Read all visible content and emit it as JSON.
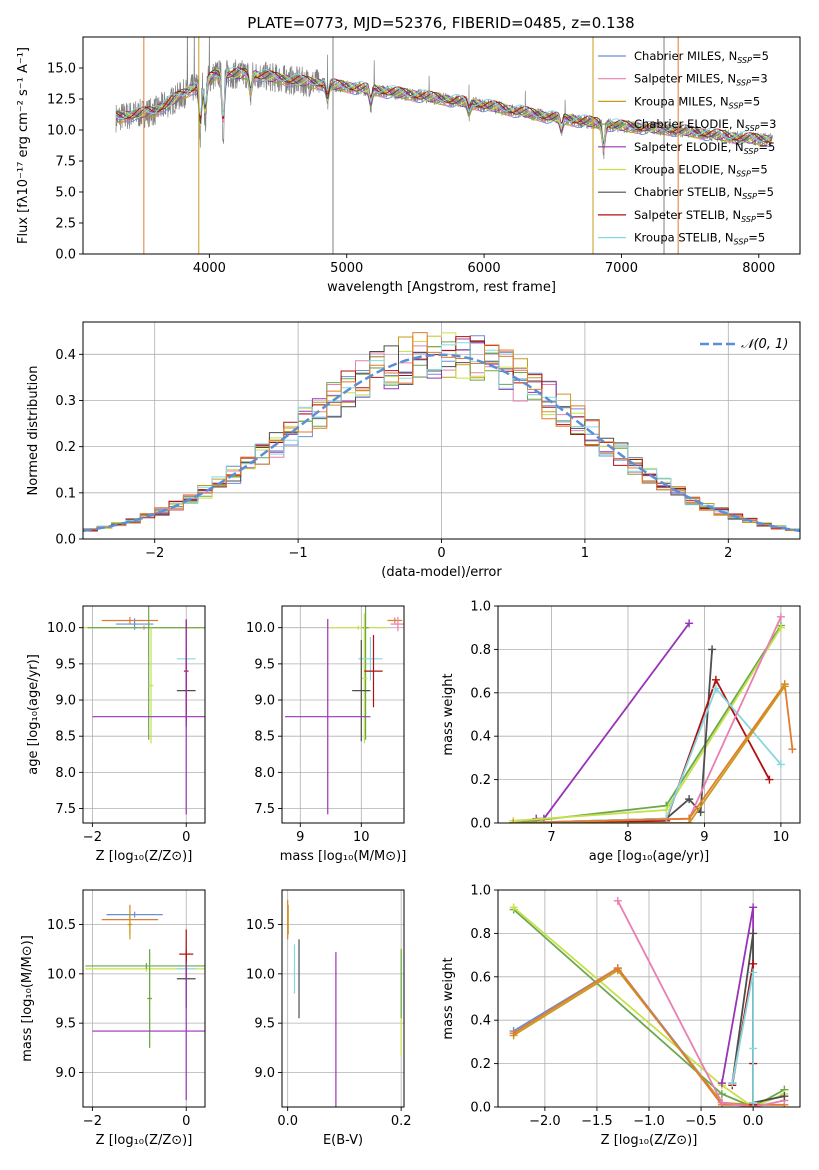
{
  "title": "PLATE=0773, MJD=52376, FIBERID=0485, z=0.138",
  "colors": {
    "Chabrier MILES": "#6a8fd8",
    "Salpeter MILES": "#e87fb0",
    "Kroupa MILES": "#c89b1a",
    "Chabrier ELODIE": "#6aa84f",
    "Salpeter ELODIE": "#9a32b8",
    "Kroupa ELODIE": "#c8e04a",
    "Chabrier STELIB": "#4d4d4d",
    "Salpeter STELIB": "#b01010",
    "Kroupa STELIB": "#86d8e0",
    "orange": "#e07b30",
    "data": "#808080"
  },
  "chart_data": [
    {
      "id": "spectrum",
      "type": "line",
      "xlabel": "wavelength [Angstrom, rest frame]",
      "ylabel": "Flux [fλ10⁻¹⁷ erg cm⁻² s⁻¹ A⁻¹]",
      "xlim": [
        3080,
        8300
      ],
      "ylim": [
        0,
        17.5
      ],
      "xticks": [
        4000,
        5000,
        6000,
        7000,
        8000
      ],
      "yticks": [
        0.0,
        2.5,
        5.0,
        7.5,
        10.0,
        12.5,
        15.0
      ],
      "legend_loc": "upper right",
      "legend": [
        "Chabrier MILES, N_SSP=5",
        "Salpeter MILES, N_SSP=3",
        "Kroupa MILES, N_SSP=5",
        "Chabrier ELODIE, N_SSP=3",
        "Salpeter ELODIE, N_SSP=5",
        "Kroupa ELODIE, N_SSP=5",
        "Chabrier STELIB, N_SSP=5",
        "Salpeter STELIB, N_SSP=5",
        "Kroupa STELIB, N_SSP=5"
      ],
      "legend_series": [
        "Chabrier MILES",
        "Salpeter MILES",
        "Kroupa MILES",
        "Chabrier ELODIE",
        "Salpeter ELODIE",
        "Kroupa ELODIE",
        "Chabrier STELIB",
        "Salpeter STELIB",
        "Kroupa STELIB"
      ],
      "continuum": [
        [
          3320,
          11.0
        ],
        [
          3600,
          11.5
        ],
        [
          3900,
          13.5
        ],
        [
          4050,
          14.5
        ],
        [
          4300,
          14.5
        ],
        [
          4600,
          14.0
        ],
        [
          5000,
          13.5
        ],
        [
          5500,
          12.8
        ],
        [
          6000,
          12.0
        ],
        [
          6500,
          11.0
        ],
        [
          7000,
          10.3
        ],
        [
          7400,
          10.0
        ],
        [
          7900,
          9.3
        ],
        [
          8100,
          9.2
        ]
      ],
      "dips": [
        [
          3934,
          4.5
        ],
        [
          3970,
          3.5
        ],
        [
          4100,
          5.2
        ],
        [
          4300,
          2.0
        ],
        [
          4861,
          1.5
        ],
        [
          5175,
          1.5
        ],
        [
          5890,
          1.0
        ],
        [
          6563,
          1.2
        ],
        [
          6870,
          2.5
        ]
      ],
      "spikes": [
        [
          3840,
          6
        ],
        [
          3890,
          5
        ],
        [
          4000,
          4
        ],
        [
          4860,
          4
        ],
        [
          5200,
          2.5
        ],
        [
          5600,
          2
        ],
        [
          5890,
          2
        ],
        [
          6300,
          2
        ],
        [
          6590,
          2
        ]
      ],
      "vlines": [
        [
          4900,
          "#808080"
        ],
        [
          7310,
          "#808080"
        ],
        [
          3523,
          "#e07b30"
        ],
        [
          3923,
          "#c89b1a"
        ],
        [
          6793,
          "#c89b1a"
        ],
        [
          7413,
          "#e07b30"
        ]
      ]
    },
    {
      "id": "residuals",
      "type": "histogram",
      "xlabel": "(data-model)/error",
      "ylabel": "Normed distribution",
      "xlim": [
        -2.5,
        2.5
      ],
      "ylim": [
        0,
        0.47
      ],
      "xticks": [
        -2,
        -1,
        0,
        1,
        2
      ],
      "yticks": [
        0.0,
        0.1,
        0.2,
        0.3,
        0.4
      ],
      "reference_label": "𝒩(0, 1)",
      "reference": {
        "mean": 0,
        "sigma": 1
      },
      "bin_width": 0.1
    },
    {
      "id": "age-vs-Z",
      "type": "errorbar",
      "xlabel": "Z [log₁₀(Z/Z⊙)]",
      "ylabel": "age  [log₁₀(age/yr)]",
      "xlim": [
        -2.2,
        0.4
      ],
      "ylim": [
        7.3,
        10.3
      ],
      "xticks": [
        -2,
        0
      ],
      "yticks": [
        7.5,
        8.0,
        8.5,
        9.0,
        9.5,
        10.0
      ],
      "points": [
        {
          "x": -1.2,
          "xe": 0.6,
          "y": 10.1,
          "ye": 0.05,
          "c": "#e07b30"
        },
        {
          "x": -1.1,
          "xe": 0.4,
          "y": 10.05,
          "ye": 0.08,
          "c": "#6a8fd8"
        },
        {
          "x": -0.9,
          "xe": 1.2,
          "y": 10.0,
          "ye": 0.03,
          "c": "#e87fb0"
        },
        {
          "x": -0.8,
          "xe": 1.4,
          "y": 10.0,
          "ye": 0.03,
          "c": "#c8e04a"
        },
        {
          "x": -0.8,
          "xe": 1.3,
          "y": 10.0,
          "ye": 1.55,
          "c": "#6aa84f"
        },
        {
          "x": -0.75,
          "xe": 0.05,
          "y": 9.2,
          "ye": 0.8,
          "c": "#c8e04a"
        },
        {
          "x": 0.0,
          "xe": 0.2,
          "y": 9.57,
          "ye": 0.3,
          "c": "#86d8e0"
        },
        {
          "x": 0.0,
          "xe": 0.2,
          "y": 9.13,
          "ye": 0.5,
          "c": "#4d4d4d"
        },
        {
          "x": 0.0,
          "xe": 0.05,
          "y": 9.4,
          "ye": 0.7,
          "c": "#b01010"
        },
        {
          "x": 0.0,
          "xe": 2.0,
          "y": 8.77,
          "ye": 1.35,
          "c": "#9a32b8"
        }
      ]
    },
    {
      "id": "age-vs-mass",
      "type": "errorbar",
      "xlabel": "mass [log₁₀(M/M⊙)]",
      "ylabel": "",
      "xlim": [
        8.7,
        10.7
      ],
      "ylim": [
        7.3,
        10.3
      ],
      "xticks": [
        9,
        10
      ],
      "yticks": [
        7.5,
        8.0,
        8.5,
        9.0,
        9.5,
        10.0
      ],
      "points": [
        {
          "x": 10.55,
          "xe": 0.12,
          "y": 10.1,
          "ye": 0.04,
          "c": "#e07b30"
        },
        {
          "x": 10.6,
          "xe": 0.12,
          "y": 10.05,
          "ye": 0.1,
          "c": "#e87fb0"
        },
        {
          "x": 9.95,
          "xe": 0.5,
          "y": 10.0,
          "ye": 0.03,
          "c": "#c8e04a"
        },
        {
          "x": 10.07,
          "xe": 0.05,
          "y": 10.0,
          "ye": 1.55,
          "c": "#6aa84f"
        },
        {
          "x": 10.05,
          "xe": 0.05,
          "y": 9.3,
          "ye": 0.9,
          "c": "#c8e04a"
        },
        {
          "x": 10.15,
          "xe": 0.2,
          "y": 9.57,
          "ye": 0.3,
          "c": "#86d8e0"
        },
        {
          "x": 10.0,
          "xe": 0.15,
          "y": 9.13,
          "ye": 0.7,
          "c": "#4d4d4d"
        },
        {
          "x": 10.2,
          "xe": 0.15,
          "y": 9.4,
          "ye": 0.5,
          "c": "#b01010"
        },
        {
          "x": 9.45,
          "xe": 0.7,
          "y": 8.77,
          "ye": 1.35,
          "c": "#9a32b8"
        }
      ]
    },
    {
      "id": "massweight-vs-age",
      "type": "line",
      "xlabel": "age  [log₁₀(age/yr)]",
      "ylabel": "mass weight",
      "xlim": [
        6.3,
        10.25
      ],
      "ylim": [
        0,
        1.0
      ],
      "xticks": [
        7,
        8,
        9,
        10
      ],
      "yticks": [
        0.0,
        0.2,
        0.4,
        0.6,
        0.8,
        1.0
      ],
      "series": [
        {
          "c": "#9a32b8",
          "pts": [
            [
              6.8,
              0.02
            ],
            [
              6.9,
              0.02
            ],
            [
              8.8,
              0.92
            ]
          ]
        },
        {
          "c": "#6aa84f",
          "pts": [
            [
              6.5,
              0.0
            ],
            [
              8.5,
              0.08
            ],
            [
              10.0,
              0.91
            ]
          ]
        },
        {
          "c": "#c8e04a",
          "pts": [
            [
              6.5,
              0.01
            ],
            [
              8.5,
              0.06
            ],
            [
              10.0,
              0.9
            ]
          ]
        },
        {
          "c": "#4d4d4d",
          "pts": [
            [
              6.5,
              0.0
            ],
            [
              8.5,
              0.02
            ],
            [
              8.8,
              0.11
            ],
            [
              8.95,
              0.05
            ],
            [
              9.1,
              0.8
            ]
          ]
        },
        {
          "c": "#b01010",
          "pts": [
            [
              6.5,
              0.0
            ],
            [
              8.5,
              0.01
            ],
            [
              9.15,
              0.66
            ],
            [
              9.85,
              0.2
            ]
          ]
        },
        {
          "c": "#86d8e0",
          "pts": [
            [
              6.5,
              0.0
            ],
            [
              8.5,
              0.02
            ],
            [
              9.15,
              0.62
            ],
            [
              10.0,
              0.27
            ]
          ]
        },
        {
          "c": "#e87fb0",
          "pts": [
            [
              6.5,
              0.0
            ],
            [
              8.8,
              0.02
            ],
            [
              10.0,
              0.95
            ]
          ]
        },
        {
          "c": "#e07b30",
          "pts": [
            [
              6.5,
              0.0
            ],
            [
              8.8,
              0.02
            ],
            [
              10.05,
              0.64
            ],
            [
              10.15,
              0.34
            ]
          ]
        },
        {
          "c": "#c89b1a",
          "pts": [
            [
              6.5,
              0.0
            ],
            [
              8.8,
              0.0
            ],
            [
              10.05,
              0.63
            ]
          ]
        }
      ]
    },
    {
      "id": "mass-vs-Z",
      "type": "errorbar",
      "xlabel": "Z [log₁₀(Z/Z⊙)]",
      "ylabel": "mass [log₁₀(M/M⊙)]",
      "xlim": [
        -2.2,
        0.4
      ],
      "ylim": [
        8.65,
        10.85
      ],
      "xticks": [
        -2,
        0
      ],
      "yticks": [
        9.0,
        9.5,
        10.0,
        10.5
      ],
      "points": [
        {
          "x": -1.1,
          "xe": 0.6,
          "y": 10.6,
          "ye": 0.03,
          "c": "#6a8fd8"
        },
        {
          "x": -1.2,
          "xe": 0.6,
          "y": 10.55,
          "ye": 0.15,
          "c": "#e07b30"
        },
        {
          "x": -1.2,
          "xe": 0.05,
          "y": 10.5,
          "ye": 0.15,
          "c": "#c89b1a"
        },
        {
          "x": -0.85,
          "xe": 1.3,
          "y": 10.05,
          "ye": 0.03,
          "c": "#c8e04a"
        },
        {
          "x": -0.85,
          "xe": 1.3,
          "y": 10.08,
          "ye": 0.03,
          "c": "#6aa84f"
        },
        {
          "x": -0.78,
          "xe": 0.05,
          "y": 9.75,
          "ye": 0.5,
          "c": "#c8e04a"
        },
        {
          "x": -0.78,
          "xe": 0.05,
          "y": 9.75,
          "ye": 0.5,
          "c": "#6aa84f"
        },
        {
          "x": 0.0,
          "xe": 0.2,
          "y": 10.05,
          "ye": 0.3,
          "c": "#86d8e0"
        },
        {
          "x": 0.0,
          "xe": 0.2,
          "y": 9.95,
          "ye": 0.3,
          "c": "#4d4d4d"
        },
        {
          "x": 0.0,
          "xe": 0.15,
          "y": 10.2,
          "ye": 0.25,
          "c": "#b01010"
        },
        {
          "x": 0.0,
          "xe": 2.0,
          "y": 9.42,
          "ye": 0.7,
          "c": "#9a32b8"
        }
      ]
    },
    {
      "id": "mass-vs-EBV",
      "type": "errorbar",
      "xlabel": "E(B-V)",
      "ylabel": "",
      "xlim": [
        -0.01,
        0.205
      ],
      "ylim": [
        8.65,
        10.85
      ],
      "xticks": [
        0.0,
        0.2
      ],
      "yticks": [
        9.0,
        9.5,
        10.0,
        10.5
      ],
      "points": [
        {
          "x": 0.0,
          "xe": 0.0,
          "y": 10.55,
          "ye": 0.2,
          "c": "#e07b30"
        },
        {
          "x": 0.001,
          "xe": 0.0,
          "y": 10.55,
          "ye": 0.15,
          "c": "#c89b1a"
        },
        {
          "x": 0.012,
          "xe": 0.0,
          "y": 10.05,
          "ye": 0.25,
          "c": "#86d8e0"
        },
        {
          "x": 0.02,
          "xe": 0.0,
          "y": 9.95,
          "ye": 0.4,
          "c": "#4d4d4d"
        },
        {
          "x": 0.085,
          "xe": 0.0,
          "y": 9.42,
          "ye": 0.8,
          "c": "#9a32b8"
        },
        {
          "x": 0.2,
          "xe": 0.0,
          "y": 9.72,
          "ye": 0.55,
          "c": "#c8e04a"
        },
        {
          "x": 0.2,
          "xe": 0.0,
          "y": 9.9,
          "ye": 0.35,
          "c": "#6aa84f"
        }
      ]
    },
    {
      "id": "massweight-vs-Z",
      "type": "line",
      "xlabel": "Z [log₁₀(Z/Z⊙)]",
      "ylabel": "mass weight",
      "xlim": [
        -2.45,
        0.45
      ],
      "ylim": [
        0,
        1.0
      ],
      "xticks": [
        -2.0,
        -1.5,
        -1.0,
        -0.5,
        0.0
      ],
      "yticks": [
        0.0,
        0.2,
        0.4,
        0.6,
        0.8,
        1.0
      ],
      "series": [
        {
          "c": "#6aa84f",
          "pts": [
            [
              -2.3,
              0.91
            ],
            [
              -0.3,
              0.06
            ],
            [
              0.0,
              0.0
            ],
            [
              0.3,
              0.08
            ]
          ]
        },
        {
          "c": "#c8e04a",
          "pts": [
            [
              -2.3,
              0.92
            ],
            [
              -0.3,
              0.1
            ],
            [
              0.0,
              0.0
            ],
            [
              0.3,
              0.06
            ]
          ]
        },
        {
          "c": "#6a8fd8",
          "pts": [
            [
              -2.3,
              0.35
            ],
            [
              -1.3,
              0.64
            ],
            [
              -0.3,
              0.02
            ],
            [
              0.0,
              0.0
            ]
          ]
        },
        {
          "c": "#c89b1a",
          "pts": [
            [
              -2.3,
              0.33
            ],
            [
              -1.3,
              0.63
            ],
            [
              -0.3,
              0.02
            ],
            [
              0.0,
              0.01
            ]
          ]
        },
        {
          "c": "#e07b30",
          "pts": [
            [
              -2.3,
              0.34
            ],
            [
              -1.3,
              0.64
            ],
            [
              -0.3,
              0.01
            ],
            [
              0.3,
              0.01
            ]
          ]
        },
        {
          "c": "#e87fb0",
          "pts": [
            [
              -1.3,
              0.95
            ],
            [
              -0.3,
              0.02
            ],
            [
              0.0,
              0.0
            ],
            [
              0.3,
              0.03
            ]
          ]
        },
        {
          "c": "#9a32b8",
          "pts": [
            [
              -0.3,
              0.11
            ],
            [
              0.0,
              0.92
            ],
            [
              0.0,
              0.02
            ]
          ]
        },
        {
          "c": "#4d4d4d",
          "pts": [
            [
              -0.2,
              0.11
            ],
            [
              0.0,
              0.8
            ],
            [
              0.0,
              0.02
            ],
            [
              0.3,
              0.05
            ]
          ]
        },
        {
          "c": "#b01010",
          "pts": [
            [
              -0.2,
              0.1
            ],
            [
              0.0,
              0.66
            ],
            [
              0.0,
              0.2
            ],
            [
              0.0,
              0.01
            ]
          ]
        },
        {
          "c": "#86d8e0",
          "pts": [
            [
              -0.2,
              0.11
            ],
            [
              0.0,
              0.62
            ],
            [
              0.0,
              0.27
            ],
            [
              0.0,
              0.02
            ]
          ]
        }
      ]
    }
  ]
}
